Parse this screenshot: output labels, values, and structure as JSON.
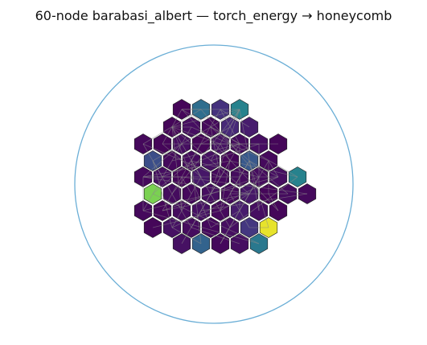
{
  "chart_data": {
    "type": "heatmap",
    "title": "60-node barabasi_albert — torch_energy → honeycomb",
    "xlabel": "",
    "ylabel": "",
    "grid": false,
    "colormap": "viridis",
    "boundary_color": "#6aaed6",
    "edge_color": "#8c8c8c",
    "hex_outline_color": "#222222",
    "rows": [
      [
        0.02,
        0.45,
        0.18,
        0.55
      ],
      [
        0.02,
        0.05,
        0.03,
        0.15,
        0.1
      ],
      [
        0.03,
        0.02,
        0.05,
        0.02,
        0.06,
        0.04,
        0.05,
        0.02
      ],
      [
        0.3,
        0.03,
        0.04,
        0.06,
        0.02,
        0.35,
        0.03
      ],
      [
        0.03,
        0.05,
        0.02,
        0.08,
        0.03,
        0.04,
        0.04,
        0.05,
        0.55
      ],
      [
        0.88,
        0.04,
        0.03,
        0.05,
        0.03,
        0.08,
        0.02,
        0.04,
        0.03
      ],
      [
        0.03,
        0.02,
        0.04,
        0.06,
        0.03,
        0.1,
        0.05,
        0.02
      ],
      [
        0.02,
        0.06,
        0.04,
        0.03,
        0.05,
        0.2,
        0.98
      ],
      [
        0.06,
        0.4,
        0.03,
        0.05,
        0.5
      ]
    ]
  }
}
